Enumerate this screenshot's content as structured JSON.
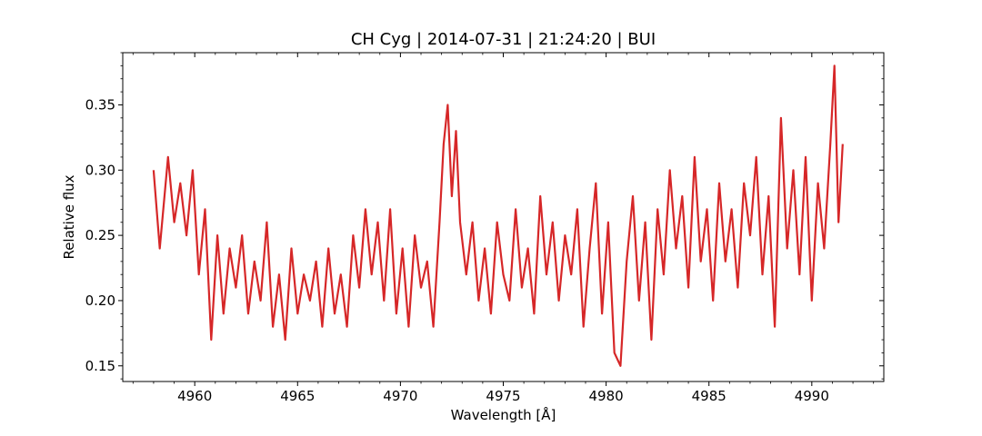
{
  "chart_data": {
    "type": "line",
    "title": "CH Cyg | 2014-07-31 | 21:24:20 | BUI",
    "xlabel": "Wavelength [Å]",
    "ylabel": "Relative flux",
    "xlim": [
      4956.5,
      4993.5
    ],
    "ylim": [
      0.138,
      0.39
    ],
    "x_ticks": [
      4960,
      4965,
      4970,
      4975,
      4980,
      4985,
      4990
    ],
    "x_tick_labels": [
      "4960",
      "4965",
      "4970",
      "4975",
      "4980",
      "4985",
      "4990"
    ],
    "y_ticks": [
      0.15,
      0.2,
      0.25,
      0.3,
      0.35
    ],
    "y_tick_labels": [
      "0.15",
      "0.20",
      "0.25",
      "0.30",
      "0.35"
    ],
    "minor_ticks": true,
    "grid": false,
    "series": [
      {
        "color": "#d62728",
        "x": [
          4958.0,
          4958.3,
          4958.7,
          4959.0,
          4959.3,
          4959.6,
          4959.9,
          4960.2,
          4960.5,
          4960.8,
          4961.1,
          4961.4,
          4961.7,
          4962.0,
          4962.3,
          4962.6,
          4962.9,
          4963.2,
          4963.5,
          4963.8,
          4964.1,
          4964.4,
          4964.7,
          4965.0,
          4965.3,
          4965.6,
          4965.9,
          4966.2,
          4966.5,
          4966.8,
          4967.1,
          4967.4,
          4967.7,
          4968.0,
          4968.3,
          4968.6,
          4968.9,
          4969.2,
          4969.5,
          4969.8,
          4970.1,
          4970.4,
          4970.7,
          4971.0,
          4971.3,
          4971.6,
          4971.9,
          4972.1,
          4972.3,
          4972.5,
          4972.7,
          4972.9,
          4973.2,
          4973.5,
          4973.8,
          4974.1,
          4974.4,
          4974.7,
          4975.0,
          4975.3,
          4975.6,
          4975.9,
          4976.2,
          4976.5,
          4976.8,
          4977.1,
          4977.4,
          4977.7,
          4978.0,
          4978.3,
          4978.6,
          4978.9,
          4979.2,
          4979.5,
          4979.8,
          4980.1,
          4980.4,
          4980.7,
          4981.0,
          4981.3,
          4981.6,
          4981.9,
          4982.2,
          4982.5,
          4982.8,
          4983.1,
          4983.4,
          4983.7,
          4984.0,
          4984.3,
          4984.6,
          4984.9,
          4985.2,
          4985.5,
          4985.8,
          4986.1,
          4986.4,
          4986.7,
          4987.0,
          4987.3,
          4987.6,
          4987.9,
          4988.2,
          4988.5,
          4988.8,
          4989.1,
          4989.4,
          4989.7,
          4990.0,
          4990.3,
          4990.6,
          4990.9,
          4991.1,
          4991.3,
          4991.5
        ],
        "y": [
          0.3,
          0.24,
          0.31,
          0.26,
          0.29,
          0.25,
          0.3,
          0.22,
          0.27,
          0.17,
          0.25,
          0.19,
          0.24,
          0.21,
          0.25,
          0.19,
          0.23,
          0.2,
          0.26,
          0.18,
          0.22,
          0.17,
          0.24,
          0.19,
          0.22,
          0.2,
          0.23,
          0.18,
          0.24,
          0.19,
          0.22,
          0.18,
          0.25,
          0.21,
          0.27,
          0.22,
          0.26,
          0.2,
          0.27,
          0.19,
          0.24,
          0.18,
          0.25,
          0.21,
          0.23,
          0.18,
          0.26,
          0.32,
          0.35,
          0.28,
          0.33,
          0.26,
          0.22,
          0.26,
          0.2,
          0.24,
          0.19,
          0.26,
          0.22,
          0.2,
          0.27,
          0.21,
          0.24,
          0.19,
          0.28,
          0.22,
          0.26,
          0.2,
          0.25,
          0.22,
          0.27,
          0.18,
          0.24,
          0.29,
          0.19,
          0.26,
          0.16,
          0.15,
          0.23,
          0.28,
          0.2,
          0.26,
          0.17,
          0.27,
          0.22,
          0.3,
          0.24,
          0.28,
          0.21,
          0.31,
          0.23,
          0.27,
          0.2,
          0.29,
          0.23,
          0.27,
          0.21,
          0.29,
          0.25,
          0.31,
          0.22,
          0.28,
          0.18,
          0.34,
          0.24,
          0.3,
          0.22,
          0.31,
          0.2,
          0.29,
          0.24,
          0.32,
          0.38,
          0.26,
          0.32
        ]
      }
    ]
  }
}
